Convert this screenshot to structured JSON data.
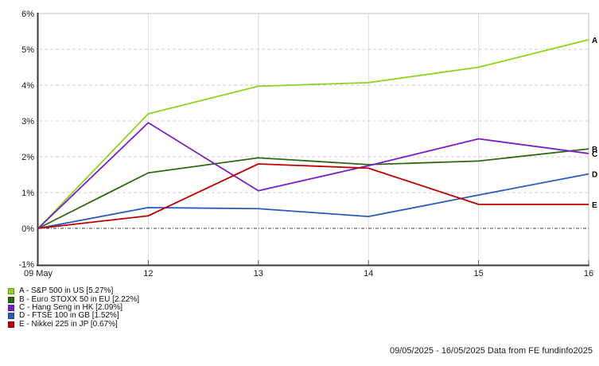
{
  "chart_data": {
    "type": "line",
    "title": "",
    "categories": [
      "09 May",
      "12",
      "13",
      "14",
      "15",
      "16"
    ],
    "ylim": [
      -1,
      6
    ],
    "y_ticks": [
      6,
      5,
      4,
      3,
      2,
      1,
      0,
      -1
    ],
    "y_tick_labels": [
      "6%",
      "5%",
      "4%",
      "3%",
      "2%",
      "1%",
      "0%",
      "-1%"
    ],
    "grid": true,
    "zero_line": "black-dash-dot",
    "legend_position": "bottom-left",
    "series": [
      {
        "key": "A",
        "name": "S&P 500 in US",
        "final_value_pct": 5.27,
        "color": "#8CD41E",
        "legend_label": "A - S&P 500 in US [5.27%]",
        "values": [
          0,
          3.2,
          3.97,
          4.07,
          4.5,
          5.27
        ]
      },
      {
        "key": "B",
        "name": "Euro STOXX 50 in EU",
        "final_value_pct": 2.22,
        "color": "#2D6A0E",
        "legend_label": "B - Euro STOXX 50 in EU [2.22%]",
        "values": [
          0,
          1.55,
          1.97,
          1.78,
          1.88,
          2.22
        ]
      },
      {
        "key": "C",
        "name": "Hang Seng in HK",
        "final_value_pct": 2.09,
        "color": "#7A1FC8",
        "legend_label": "C - Hang Seng in HK [2.09%]",
        "values": [
          0,
          2.95,
          1.05,
          1.75,
          2.5,
          2.09
        ]
      },
      {
        "key": "D",
        "name": "FTSE 100 in GB",
        "final_value_pct": 1.52,
        "color": "#2B5BBE",
        "legend_label": "D - FTSE 100 in GB [1.52%]",
        "values": [
          0,
          0.58,
          0.55,
          0.33,
          0.93,
          1.52
        ]
      },
      {
        "key": "E",
        "name": "Nikkei 225 in JP",
        "final_value_pct": 0.67,
        "color": "#C00000",
        "legend_label": "E - Nikkei 225 in JP [0.67%]",
        "values": [
          0,
          0.35,
          1.8,
          1.68,
          0.67,
          0.67
        ]
      }
    ]
  },
  "footer": {
    "text": "09/05/2025 - 16/05/2025 Data from FE fundinfo2025"
  }
}
